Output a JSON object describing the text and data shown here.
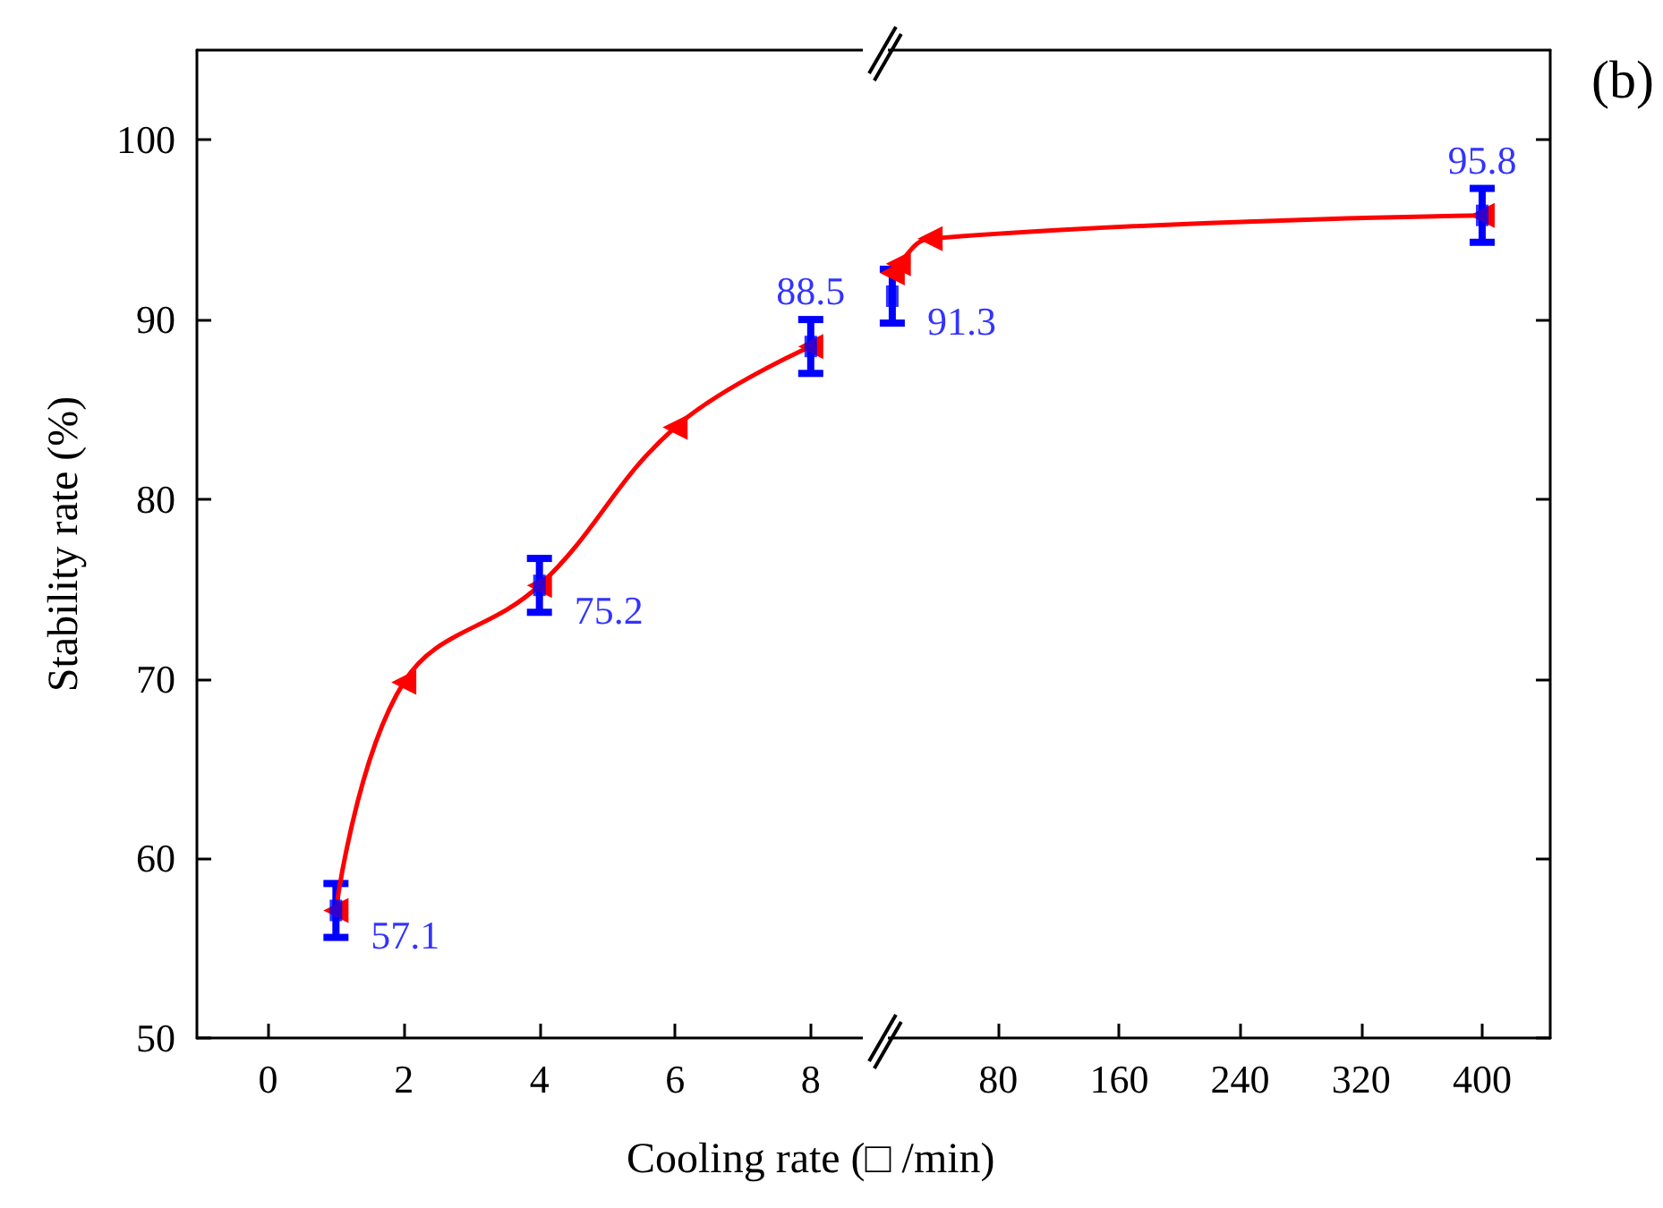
{
  "chart_data": [
    {
      "type": "line",
      "xlabel": "Cooling rate (□ /min)",
      "ylabel": "Stability rate (%)",
      "xlim": [
        -1.05,
        8.9
      ],
      "xticks": [
        0,
        2,
        4,
        6,
        8
      ],
      "ylim": [
        50,
        105
      ],
      "yticks": [
        50,
        60,
        70,
        80,
        90,
        100
      ],
      "series": [
        {
          "color": "#ff0000",
          "marker": "triangle",
          "x": [
            1,
            2,
            4,
            6,
            8
          ],
          "values": [
            57.1,
            69.8,
            75.2,
            84.0,
            88.5
          ]
        },
        {
          "type": "scatter",
          "color": "#0000ff",
          "marker": "square",
          "data_labels": true,
          "x": [
            1,
            4,
            8
          ],
          "values": [
            57.1,
            75.2,
            88.5
          ],
          "errors": [
            1.5,
            1.5,
            1.5
          ]
        }
      ]
    },
    {
      "type": "line",
      "xlim": [
        0,
        445
      ],
      "xticks": [
        80,
        160,
        240,
        320,
        400
      ],
      "ylim": [
        50,
        105
      ],
      "yticks": [
        50,
        60,
        70,
        80,
        90,
        100
      ],
      "tick_labels": "x",
      "annotations": [
        "(b)"
      ],
      "series": [
        {
          "color": "#ff0000",
          "marker": "triangle",
          "x": [
            10,
            14,
            35,
            400
          ],
          "values": [
            92.6,
            93.1,
            94.5,
            95.8
          ]
        },
        {
          "type": "scatter",
          "color": "#0000ff",
          "marker": "square",
          "data_labels": true,
          "x": [
            10,
            400
          ],
          "values": [
            91.3,
            95.8
          ],
          "errors": [
            1.5,
            1.5
          ]
        }
      ]
    }
  ]
}
